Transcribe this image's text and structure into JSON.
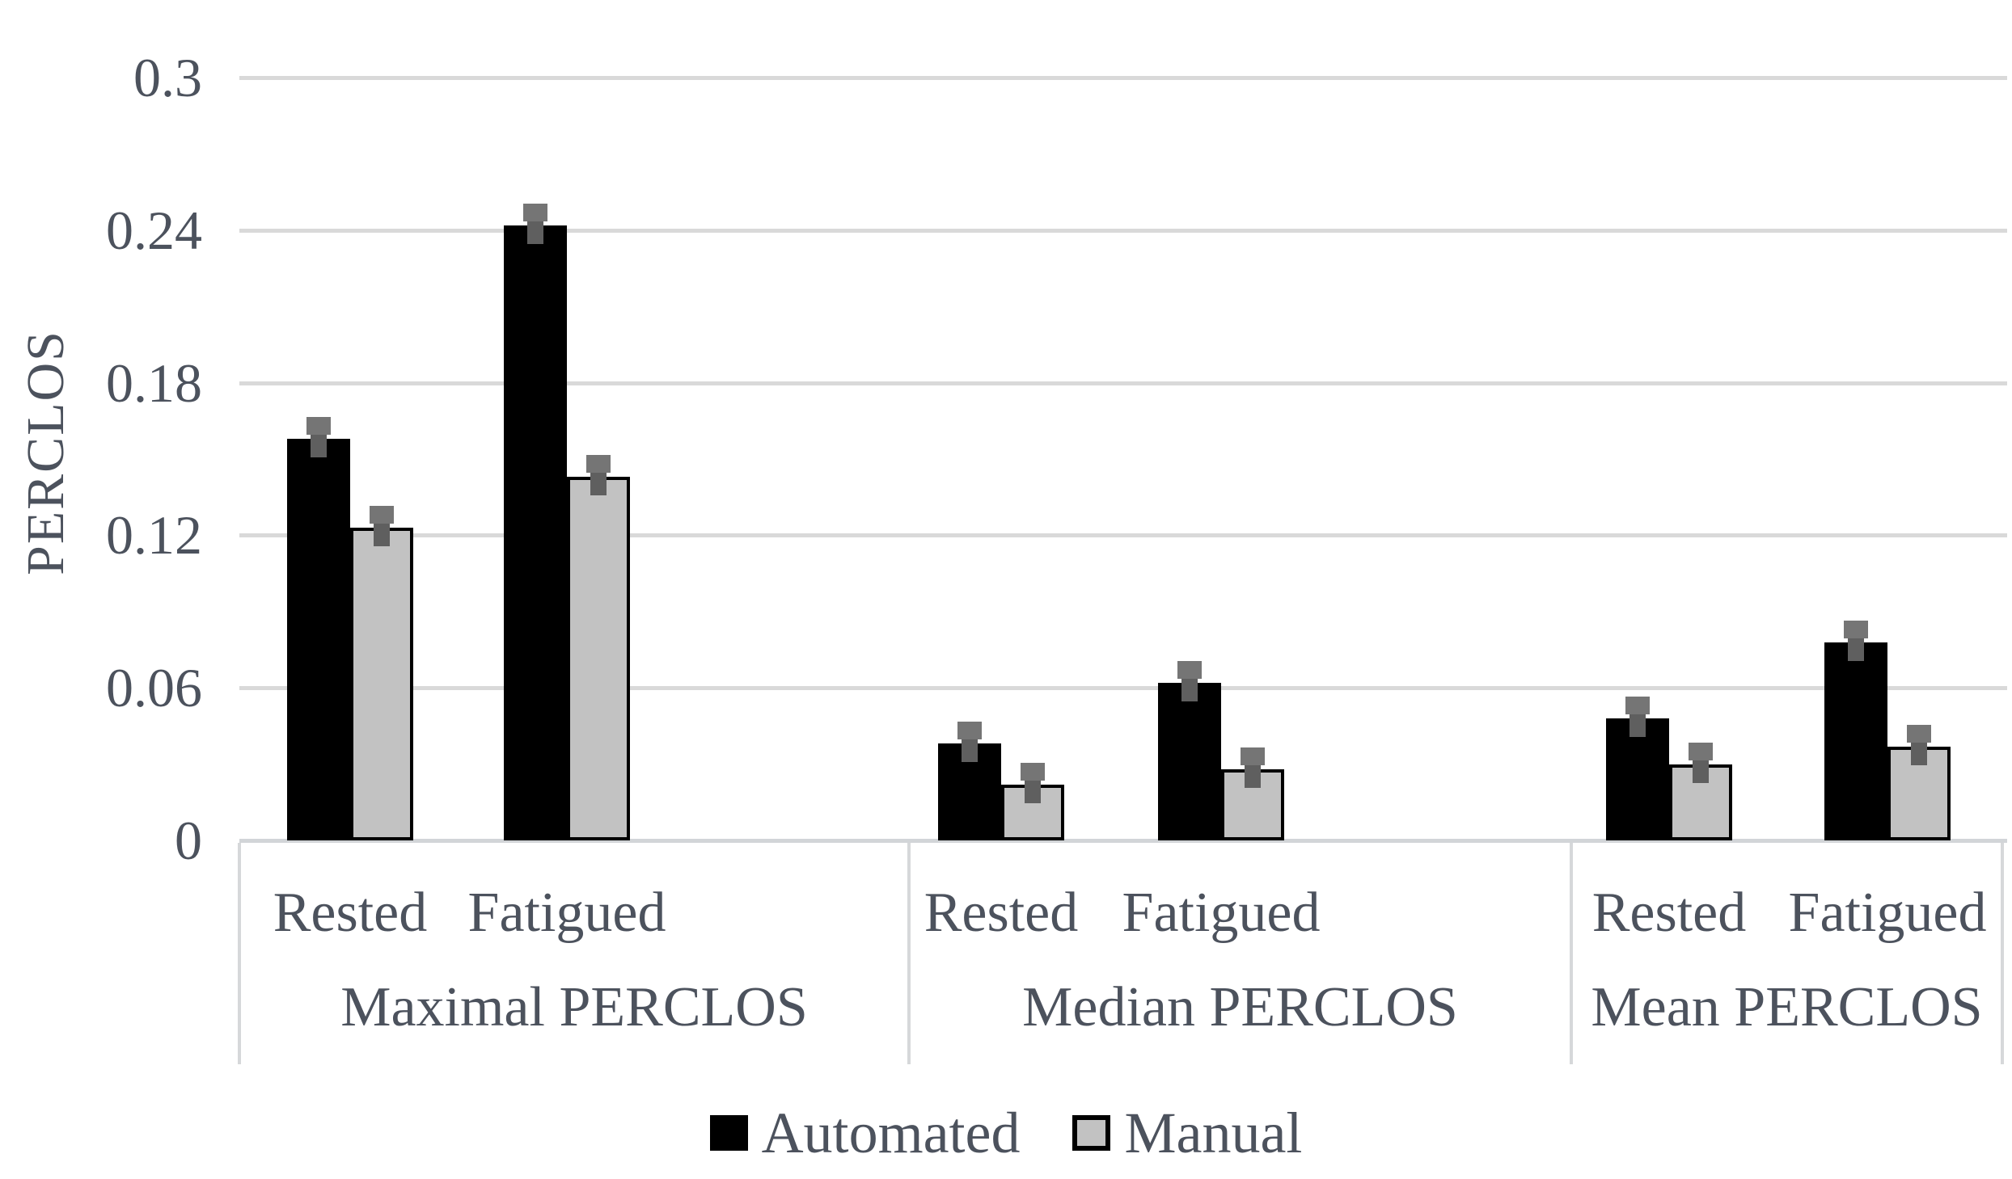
{
  "chart_data": {
    "type": "bar",
    "title": "",
    "ylabel": "PERCLOS",
    "xlabel": "",
    "ylim": [
      0,
      0.3
    ],
    "yticks": [
      0,
      0.06,
      0.12,
      0.18,
      0.24,
      0.3
    ],
    "ytick_labels": [
      "0",
      "0.06",
      "0.12",
      "0.18",
      "0.24",
      "0.3"
    ],
    "grid": "horizontal",
    "legend_position": "bottom",
    "groups": [
      {
        "label": "Maximal PERCLOS",
        "conditions": [
          "Rested",
          "Fatigued"
        ]
      },
      {
        "label": "Median PERCLOS",
        "conditions": [
          "Rested",
          "Fatigued"
        ]
      },
      {
        "label": "Mean PERCLOS",
        "conditions": [
          "Rested",
          "Fatigued"
        ]
      }
    ],
    "series": [
      {
        "name": "Automated",
        "color": "#000000",
        "values": [
          [
            0.158,
            0.242
          ],
          [
            0.038,
            0.062
          ],
          [
            0.048,
            0.078
          ]
        ]
      },
      {
        "name": "Manual",
        "color": "#c2c2c2",
        "values": [
          [
            0.123,
            0.143
          ],
          [
            0.022,
            0.028
          ],
          [
            0.03,
            0.037
          ]
        ]
      }
    ],
    "error_bars": {
      "shown": true,
      "approx_magnitude": 0.006,
      "color": "#5f5f5f"
    }
  }
}
